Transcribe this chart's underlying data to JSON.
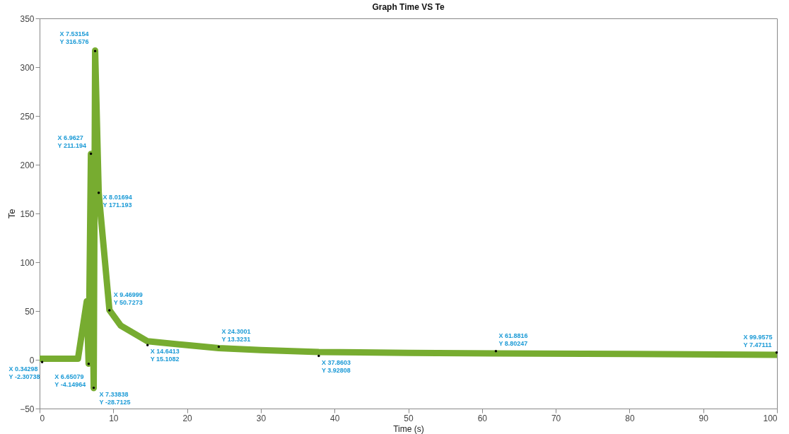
{
  "chart_data": {
    "type": "line",
    "title": "Graph Time VS Te",
    "xlabel": "Time (s)",
    "ylabel": "Te",
    "x": [
      0,
      5.2,
      6.4,
      6.65079,
      6.9627,
      7.33838,
      7.53154,
      8.01694,
      9.46999,
      11,
      14.6413,
      20,
      24.3001,
      30,
      37.8603,
      50,
      61.8816,
      80,
      100
    ],
    "series": [
      {
        "color": "#77ac30",
        "values": [
          1,
          1,
          60,
          -4,
          211,
          -29,
          317,
          171,
          51,
          35,
          19,
          15,
          12,
          10,
          8,
          7,
          6.5,
          6,
          5
        ]
      }
    ],
    "xlim": [
      0,
      100
    ],
    "xticks": [
      0,
      10,
      20,
      30,
      40,
      50,
      60,
      70,
      80,
      90,
      100
    ],
    "ylim": [
      -50,
      350
    ],
    "yticks": [
      -50,
      0,
      50,
      100,
      150,
      200,
      250,
      300,
      350
    ],
    "grid": false,
    "line_style": "solid",
    "annotations": [
      {
        "text": "X 0.34298\nY -2.30738",
        "x": 0.34298,
        "y": -2.30738
      },
      {
        "text": "X 6.65079\nY -4.14964",
        "x": 6.65079,
        "y": -4.14964
      },
      {
        "text": "X 7.33838\nY -28.7125",
        "x": 7.33838,
        "y": -28.7125
      },
      {
        "text": "X 6.9627\nY 211.194",
        "x": 6.9627,
        "y": 211.194
      },
      {
        "text": "X 7.53154\nY 316.576",
        "x": 7.53154,
        "y": 316.576
      },
      {
        "text": "X 8.01694\nY 171.193",
        "x": 8.01694,
        "y": 171.193
      },
      {
        "text": "X 9.46999\nY 50.7273",
        "x": 9.46999,
        "y": 50.7273
      },
      {
        "text": "X 14.6413\nY 15.1082",
        "x": 14.6413,
        "y": 15.1082
      },
      {
        "text": "X 24.3001\nY 13.3231",
        "x": 24.3001,
        "y": 13.3231
      },
      {
        "text": "X 37.8603\nY 3.92808",
        "x": 37.8603,
        "y": 3.92808
      },
      {
        "text": "X 61.8816\nY 8.80247",
        "x": 61.8816,
        "y": 8.80247
      },
      {
        "text": "X 99.9575\nY 7.47111",
        "x": 99.9575,
        "y": 7.47111
      }
    ]
  }
}
